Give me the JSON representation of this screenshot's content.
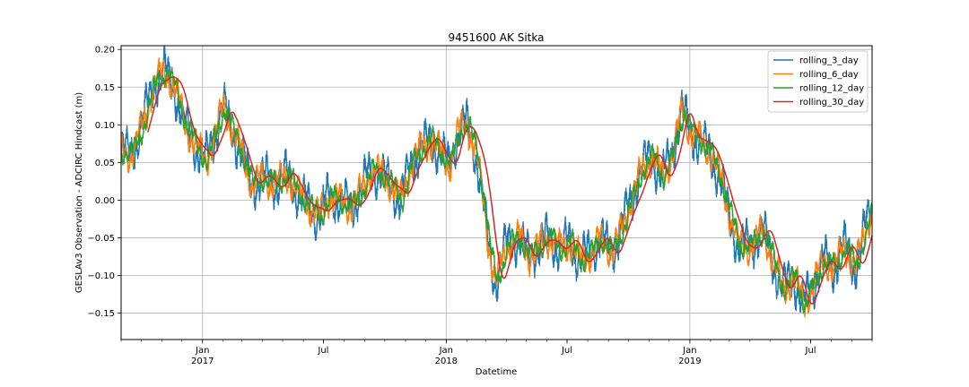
{
  "chart_data": {
    "type": "line",
    "title": "9451600 AK Sitka",
    "xlabel": "Datetime",
    "ylabel": "GESLAv3 Observation - ADCIRC Hindcast (m)",
    "xlim": [
      "2016-09-01",
      "2019-10-01"
    ],
    "ylim": [
      -0.185,
      0.205
    ],
    "grid": true,
    "legend_position": "top-right",
    "y_ticks": [
      {
        "value": 0.2,
        "label": "0.20"
      },
      {
        "value": 0.15,
        "label": "0.15"
      },
      {
        "value": 0.1,
        "label": "0.10"
      },
      {
        "value": 0.05,
        "label": "0.05"
      },
      {
        "value": 0.0,
        "label": "0.00"
      },
      {
        "value": -0.05,
        "label": "−0.05"
      },
      {
        "value": -0.1,
        "label": "−0.10"
      },
      {
        "value": -0.15,
        "label": "−0.15"
      }
    ],
    "x_major_ticks": [
      {
        "date": "2017-01-01",
        "label": "Jan",
        "year": "2017"
      },
      {
        "date": "2017-07-01",
        "label": "Jul",
        "year": ""
      },
      {
        "date": "2018-01-01",
        "label": "Jan",
        "year": "2018"
      },
      {
        "date": "2018-07-01",
        "label": "Jul",
        "year": ""
      },
      {
        "date": "2019-01-01",
        "label": "Jan",
        "year": "2019"
      },
      {
        "date": "2019-07-01",
        "label": "Jul",
        "year": ""
      }
    ],
    "x_grid_dates": [
      "2017-01-01",
      "2018-01-01",
      "2019-01-01"
    ],
    "series": [
      {
        "name": "rolling_3_day",
        "color": "#1f77b4",
        "noise_amp": 0.022,
        "lag_days": 0,
        "smooth_days": 3
      },
      {
        "name": "rolling_6_day",
        "color": "#ff7f0e",
        "noise_amp": 0.016,
        "lag_days": 1,
        "smooth_days": 6
      },
      {
        "name": "rolling_12_day",
        "color": "#2ca02c",
        "noise_amp": 0.011,
        "lag_days": 3,
        "smooth_days": 12
      },
      {
        "name": "rolling_30_day",
        "color": "#d62728",
        "noise_amp": 0.0,
        "lag_days": 12,
        "smooth_days": 30,
        "start": "2016-10-11"
      }
    ],
    "trend": [
      [
        "2016-09-01",
        0.065
      ],
      [
        "2016-09-15",
        0.06
      ],
      [
        "2016-10-01",
        0.095
      ],
      [
        "2016-10-20",
        0.155
      ],
      [
        "2016-11-05",
        0.17
      ],
      [
        "2016-11-20",
        0.15
      ],
      [
        "2016-12-05",
        0.1
      ],
      [
        "2016-12-20",
        0.075
      ],
      [
        "2017-01-05",
        0.05
      ],
      [
        "2017-01-20",
        0.09
      ],
      [
        "2017-02-01",
        0.125
      ],
      [
        "2017-02-15",
        0.09
      ],
      [
        "2017-03-01",
        0.06
      ],
      [
        "2017-03-15",
        0.02
      ],
      [
        "2017-04-01",
        0.03
      ],
      [
        "2017-04-20",
        0.02
      ],
      [
        "2017-05-05",
        0.035
      ],
      [
        "2017-05-20",
        0.015
      ],
      [
        "2017-06-10",
        -0.01
      ],
      [
        "2017-06-25",
        -0.02
      ],
      [
        "2017-07-10",
        0.005
      ],
      [
        "2017-07-25",
        0.0
      ],
      [
        "2017-08-10",
        -0.01
      ],
      [
        "2017-08-25",
        0.01
      ],
      [
        "2017-09-10",
        0.04
      ],
      [
        "2017-09-25",
        0.035
      ],
      [
        "2017-10-10",
        0.02
      ],
      [
        "2017-10-25",
        0.0
      ],
      [
        "2017-11-10",
        0.05
      ],
      [
        "2017-11-25",
        0.07
      ],
      [
        "2017-12-10",
        0.08
      ],
      [
        "2017-12-25",
        0.06
      ],
      [
        "2018-01-05",
        0.045
      ],
      [
        "2018-01-20",
        0.095
      ],
      [
        "2018-02-01",
        0.1
      ],
      [
        "2018-02-15",
        0.06
      ],
      [
        "2018-02-25",
        0.0
      ],
      [
        "2018-03-05",
        -0.06
      ],
      [
        "2018-03-15",
        -0.11
      ],
      [
        "2018-04-01",
        -0.06
      ],
      [
        "2018-04-20",
        -0.05
      ],
      [
        "2018-05-05",
        -0.075
      ],
      [
        "2018-05-20",
        -0.06
      ],
      [
        "2018-06-05",
        -0.05
      ],
      [
        "2018-06-20",
        -0.065
      ],
      [
        "2018-07-05",
        -0.055
      ],
      [
        "2018-07-20",
        -0.08
      ],
      [
        "2018-08-05",
        -0.07
      ],
      [
        "2018-08-20",
        -0.05
      ],
      [
        "2018-09-05",
        -0.07
      ],
      [
        "2018-09-20",
        -0.04
      ],
      [
        "2018-10-05",
        0.0
      ],
      [
        "2018-10-20",
        0.04
      ],
      [
        "2018-11-05",
        0.06
      ],
      [
        "2018-11-20",
        0.03
      ],
      [
        "2018-12-05",
        0.06
      ],
      [
        "2018-12-20",
        0.12
      ],
      [
        "2019-01-01",
        0.09
      ],
      [
        "2019-01-15",
        0.08
      ],
      [
        "2019-02-01",
        0.06
      ],
      [
        "2019-02-15",
        0.03
      ],
      [
        "2019-03-01",
        -0.02
      ],
      [
        "2019-03-15",
        -0.06
      ],
      [
        "2019-04-01",
        -0.06
      ],
      [
        "2019-04-20",
        -0.04
      ],
      [
        "2019-05-05",
        -0.08
      ],
      [
        "2019-05-20",
        -0.12
      ],
      [
        "2019-06-05",
        -0.1
      ],
      [
        "2019-06-20",
        -0.14
      ],
      [
        "2019-07-05",
        -0.11
      ],
      [
        "2019-07-20",
        -0.08
      ],
      [
        "2019-08-05",
        -0.09
      ],
      [
        "2019-08-20",
        -0.06
      ],
      [
        "2019-09-05",
        -0.09
      ],
      [
        "2019-09-20",
        -0.04
      ],
      [
        "2019-10-01",
        -0.01
      ]
    ]
  }
}
